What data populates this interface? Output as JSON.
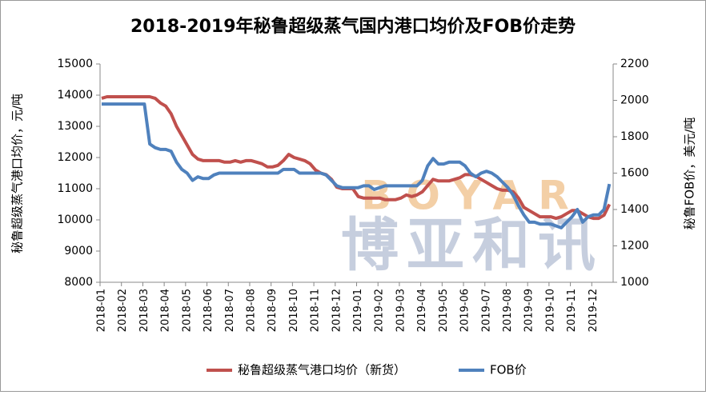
{
  "chart_data": {
    "type": "line",
    "title": "2018-2019年秘鲁超级蒸气国内港口均价及FOB价走势",
    "y_label": "秘鲁超级蒸气港口均价，元/吨",
    "y2_label": "秘鲁FOB价，美元/吨",
    "watermark": {
      "text": "博亚和讯",
      "latin": "BOYAR"
    },
    "categories": [
      "2018-01",
      null,
      null,
      null,
      "2018-02",
      null,
      null,
      null,
      "2018-03",
      null,
      null,
      null,
      "2018-04",
      null,
      null,
      null,
      "2018-05",
      null,
      null,
      null,
      "2018-06",
      null,
      null,
      null,
      "2018-07",
      null,
      null,
      null,
      "2018-08",
      null,
      null,
      null,
      "2018-09",
      null,
      null,
      null,
      "2018-10",
      null,
      null,
      null,
      "2018-11",
      null,
      null,
      null,
      "2018-12",
      null,
      null,
      null,
      "2019-01",
      null,
      null,
      null,
      "2019-02",
      null,
      null,
      null,
      "2019-03",
      null,
      null,
      null,
      "2019-04",
      null,
      null,
      null,
      "2019-05",
      null,
      null,
      null,
      "2019-06",
      null,
      null,
      null,
      "2019-07",
      null,
      null,
      null,
      "2019-08",
      null,
      null,
      null,
      "2019-09",
      null,
      null,
      null,
      "2019-10",
      null,
      null,
      null,
      "2019-11",
      null,
      null,
      null,
      "2019-12",
      null,
      null,
      null
    ],
    "series": [
      {
        "name": "秘鲁超级蒸气港口均价（新货）",
        "color": "#c0504d",
        "axis": "y",
        "values": [
          13900,
          13950,
          13950,
          13950,
          13950,
          13950,
          13950,
          13950,
          13950,
          13950,
          13900,
          13750,
          13650,
          13400,
          13000,
          12700,
          12400,
          12100,
          11950,
          11900,
          11900,
          11900,
          11900,
          11850,
          11850,
          11900,
          11850,
          11900,
          11900,
          11850,
          11800,
          11700,
          11700,
          11750,
          11900,
          12100,
          12000,
          11950,
          11900,
          11800,
          11600,
          11500,
          11450,
          11300,
          11050,
          11000,
          11000,
          11000,
          10750,
          10700,
          10700,
          10700,
          10700,
          10650,
          10650,
          10650,
          10700,
          10800,
          10750,
          10800,
          10900,
          11100,
          11300,
          11250,
          11250,
          11250,
          11300,
          11350,
          11450,
          11450,
          11400,
          11300,
          11200,
          11100,
          11000,
          10950,
          10950,
          10900,
          10700,
          10400,
          10300,
          10200,
          10100,
          10100,
          10100,
          10050,
          10100,
          10200,
          10300,
          10300,
          10200,
          10100,
          10050,
          10050,
          10150,
          10500
        ]
      },
      {
        "name": "FOB价",
        "color": "#4f81bd",
        "axis": "y2",
        "values": [
          1980,
          1980,
          1980,
          1980,
          1980,
          1980,
          1980,
          1980,
          1980,
          1760,
          1740,
          1730,
          1730,
          1720,
          1660,
          1620,
          1600,
          1560,
          1580,
          1570,
          1570,
          1590,
          1600,
          1600,
          1600,
          1600,
          1600,
          1600,
          1600,
          1600,
          1600,
          1600,
          1600,
          1600,
          1620,
          1620,
          1620,
          1600,
          1600,
          1600,
          1600,
          1600,
          1590,
          1560,
          1530,
          1520,
          1520,
          1520,
          1520,
          1530,
          1530,
          1510,
          1520,
          1530,
          1530,
          1530,
          1530,
          1530,
          1530,
          1530,
          1560,
          1640,
          1680,
          1650,
          1650,
          1660,
          1660,
          1660,
          1640,
          1600,
          1580,
          1600,
          1610,
          1600,
          1580,
          1550,
          1520,
          1480,
          1420,
          1370,
          1330,
          1330,
          1320,
          1320,
          1320,
          1310,
          1300,
          1330,
          1360,
          1400,
          1330,
          1360,
          1370,
          1370,
          1400,
          1540
        ]
      }
    ],
    "ylim": [
      8000,
      15000
    ],
    "yticks": [
      8000,
      9000,
      10000,
      11000,
      12000,
      13000,
      14000,
      15000
    ],
    "y2lim": [
      1000,
      2200
    ],
    "y2ticks": [
      1000,
      1200,
      1400,
      1600,
      1800,
      2000,
      2200
    ],
    "legend": "bottom",
    "grid": false
  }
}
